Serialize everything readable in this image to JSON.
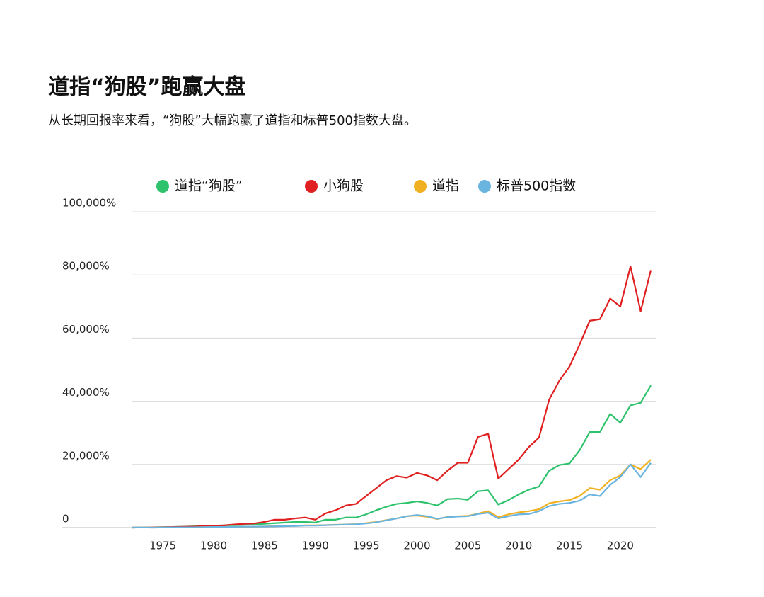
{
  "chart_data": {
    "type": "line",
    "title": "道指“狗股”跑赢大盘",
    "subtitle": "从长期回报率来看，“狗股”大幅跑赢了道指和标普500指数大盘。",
    "x": [
      1972,
      1973,
      1974,
      1975,
      1976,
      1977,
      1978,
      1979,
      1980,
      1981,
      1982,
      1983,
      1984,
      1985,
      1986,
      1987,
      1988,
      1989,
      1990,
      1991,
      1992,
      1993,
      1994,
      1995,
      1996,
      1997,
      1998,
      1999,
      2000,
      2001,
      2002,
      2003,
      2004,
      2005,
      2006,
      2007,
      2008,
      2009,
      2010,
      2011,
      2012,
      2013,
      2014,
      2015,
      2016,
      2017,
      2018,
      2019,
      2020,
      2021,
      2022,
      2023
    ],
    "series": [
      {
        "name": "道指“狗股”",
        "color": "#2dc26b",
        "values": [
          0,
          50,
          100,
          150,
          200,
          300,
          400,
          500,
          600,
          700,
          800,
          900,
          1000,
          1200,
          1400,
          1600,
          1800,
          1800,
          1600,
          2500,
          2500,
          3200,
          3200,
          4200,
          5500,
          6600,
          7500,
          7800,
          8300,
          7800,
          7000,
          9000,
          9200,
          8800,
          11500,
          11800,
          7300,
          8700,
          10500,
          12000,
          13000,
          18000,
          19800,
          20300,
          24500,
          30300,
          30300,
          36000,
          33200,
          38700,
          39500,
          45000
        ]
      },
      {
        "name": "小狗股",
        "color": "#e02020",
        "values": [
          0,
          100,
          100,
          150,
          200,
          250,
          300,
          500,
          600,
          700,
          1000,
          1200,
          1300,
          1800,
          2500,
          2500,
          2900,
          3200,
          2500,
          4500,
          5500,
          7000,
          7500,
          10000,
          12500,
          15000,
          16300,
          15800,
          17300,
          16500,
          15000,
          18000,
          20500,
          20500,
          28700,
          29700,
          15500,
          18500,
          21500,
          25500,
          28500,
          40500,
          46500,
          51000,
          58000,
          65500,
          66000,
          72500,
          70000,
          82700,
          68500,
          81500
        ]
      },
      {
        "name": "道指",
        "color": "#f0b020",
        "values": [
          0,
          50,
          0,
          50,
          100,
          100,
          100,
          150,
          200,
          200,
          250,
          300,
          300,
          350,
          450,
          500,
          550,
          700,
          700,
          800,
          900,
          1000,
          1100,
          1400,
          1800,
          2400,
          2900,
          3600,
          3800,
          3400,
          2700,
          3400,
          3600,
          3700,
          4400,
          5200,
          3300,
          4200,
          4800,
          5200,
          5800,
          7700,
          8300,
          8700,
          10000,
          12500,
          12000,
          15000,
          16500,
          20000,
          18500,
          21500
        ]
      },
      {
        "name": "标普500指数",
        "color": "#6ab4e0",
        "values": [
          0,
          50,
          0,
          50,
          100,
          100,
          100,
          150,
          200,
          200,
          250,
          300,
          300,
          350,
          400,
          450,
          500,
          650,
          650,
          750,
          850,
          950,
          1050,
          1300,
          1700,
          2300,
          2900,
          3600,
          4000,
          3600,
          2800,
          3300,
          3500,
          3600,
          4300,
          4700,
          2900,
          3600,
          4200,
          4300,
          5200,
          6800,
          7500,
          7800,
          8500,
          10500,
          10000,
          13500,
          16000,
          20000,
          16000,
          20500
        ]
      }
    ],
    "xlim": [
      1972,
      2023
    ],
    "xticks": [
      1975,
      1980,
      1985,
      1990,
      1995,
      2000,
      2005,
      2010,
      2015,
      2020
    ],
    "ylim": [
      0,
      100000
    ],
    "yticks": [
      0,
      {
        "value": 20000,
        "label": "20,000%"
      },
      {
        "value": 40000,
        "label": "40,000%"
      },
      {
        "value": 60000,
        "label": "60,000%"
      },
      {
        "value": 80000,
        "label": "80,000%"
      },
      {
        "value": 100000,
        "label": "100,000%"
      }
    ],
    "grid": true,
    "legend": "top"
  }
}
